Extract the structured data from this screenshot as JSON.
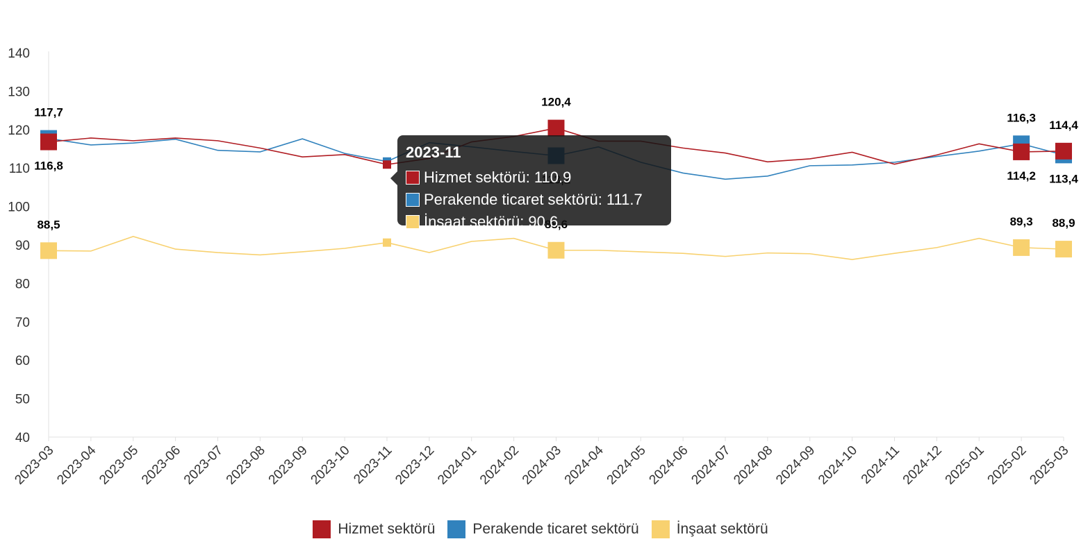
{
  "chart_data": {
    "type": "line",
    "categories": [
      "2023-03",
      "2023-04",
      "2023-05",
      "2023-06",
      "2023-07",
      "2023-08",
      "2023-09",
      "2023-10",
      "2023-11",
      "2023-12",
      "2024-01",
      "2024-02",
      "2024-03",
      "2024-04",
      "2024-05",
      "2024-06",
      "2024-07",
      "2024-08",
      "2024-09",
      "2024-10",
      "2024-11",
      "2024-12",
      "2025-01",
      "2025-02",
      "2025-03"
    ],
    "ylim": [
      40,
      140
    ],
    "yticks": [
      "40",
      "50",
      "60",
      "70",
      "80",
      "90",
      "100",
      "110",
      "120",
      "130",
      "140"
    ],
    "grid": false,
    "legend_position": "bottom",
    "series": [
      {
        "name": "Hizmet sektörü",
        "color": "#B01C22",
        "values": [
          116.8,
          117.8,
          117.1,
          117.8,
          117.1,
          115.2,
          112.9,
          113.5,
          110.9,
          112.5,
          116.8,
          118.2,
          120.4,
          117.0,
          117.0,
          115.2,
          113.9,
          111.6,
          112.4,
          114.1,
          111.0,
          113.4,
          116.3,
          114.2,
          114.4
        ]
      },
      {
        "name": "Perakende ticaret sektörü",
        "color": "#3182BD",
        "values": [
          117.7,
          116.0,
          116.5,
          117.5,
          114.6,
          114.2,
          117.6,
          113.8,
          111.7,
          116.6,
          115.5,
          114.3,
          113.2,
          115.5,
          111.5,
          108.7,
          107.1,
          107.9,
          110.6,
          110.8,
          111.5,
          113.0,
          114.4,
          116.3,
          113.4
        ]
      },
      {
        "name": "İnşaat sektörü",
        "color": "#F8D16F",
        "values": [
          88.5,
          88.4,
          92.2,
          88.9,
          88.0,
          87.4,
          88.2,
          89.1,
          90.6,
          88.0,
          90.9,
          91.7,
          88.6,
          88.6,
          88.2,
          87.8,
          87.0,
          87.9,
          87.7,
          86.2,
          87.8,
          89.3,
          91.7,
          89.3,
          88.9
        ]
      }
    ],
    "data_labels": [
      {
        "series": 1,
        "index": 0,
        "text": "117,7",
        "pos": "above"
      },
      {
        "series": 0,
        "index": 0,
        "text": "116,8",
        "pos": "below"
      },
      {
        "series": 2,
        "index": 0,
        "text": "88,5",
        "pos": "above"
      },
      {
        "series": 0,
        "index": 12,
        "text": "120,4",
        "pos": "above"
      },
      {
        "series": 1,
        "index": 12,
        "text": "113,2",
        "pos": "below"
      },
      {
        "series": 2,
        "index": 12,
        "text": "88,6",
        "pos": "above"
      },
      {
        "series": 1,
        "index": 23,
        "text": "116,3",
        "pos": "above"
      },
      {
        "series": 0,
        "index": 23,
        "text": "114,2",
        "pos": "below"
      },
      {
        "series": 2,
        "index": 23,
        "text": "89,3",
        "pos": "above"
      },
      {
        "series": 0,
        "index": 24,
        "text": "114,4",
        "pos": "above"
      },
      {
        "series": 1,
        "index": 24,
        "text": "113,4",
        "pos": "below"
      },
      {
        "series": 2,
        "index": 24,
        "text": "88,9",
        "pos": "above"
      }
    ],
    "markers_at": [
      0,
      12,
      23,
      24
    ],
    "hover_index": 8
  },
  "legend": [
    {
      "label": "Hizmet sektörü",
      "color": "#B01C22"
    },
    {
      "label": "Perakende ticaret sektörü",
      "color": "#3182BD"
    },
    {
      "label": "İnşaat sektörü",
      "color": "#F8D16F"
    }
  ],
  "tooltip": {
    "title": "2023-11",
    "rows": [
      {
        "text": "Hizmet sektörü: 110.9",
        "color": "#B01C22"
      },
      {
        "text": "Perakende ticaret sektörü: 111.7",
        "color": "#3182BD"
      },
      {
        "text": "İnşaat sektörü: 90.6",
        "color": "#F8D16F"
      }
    ]
  }
}
